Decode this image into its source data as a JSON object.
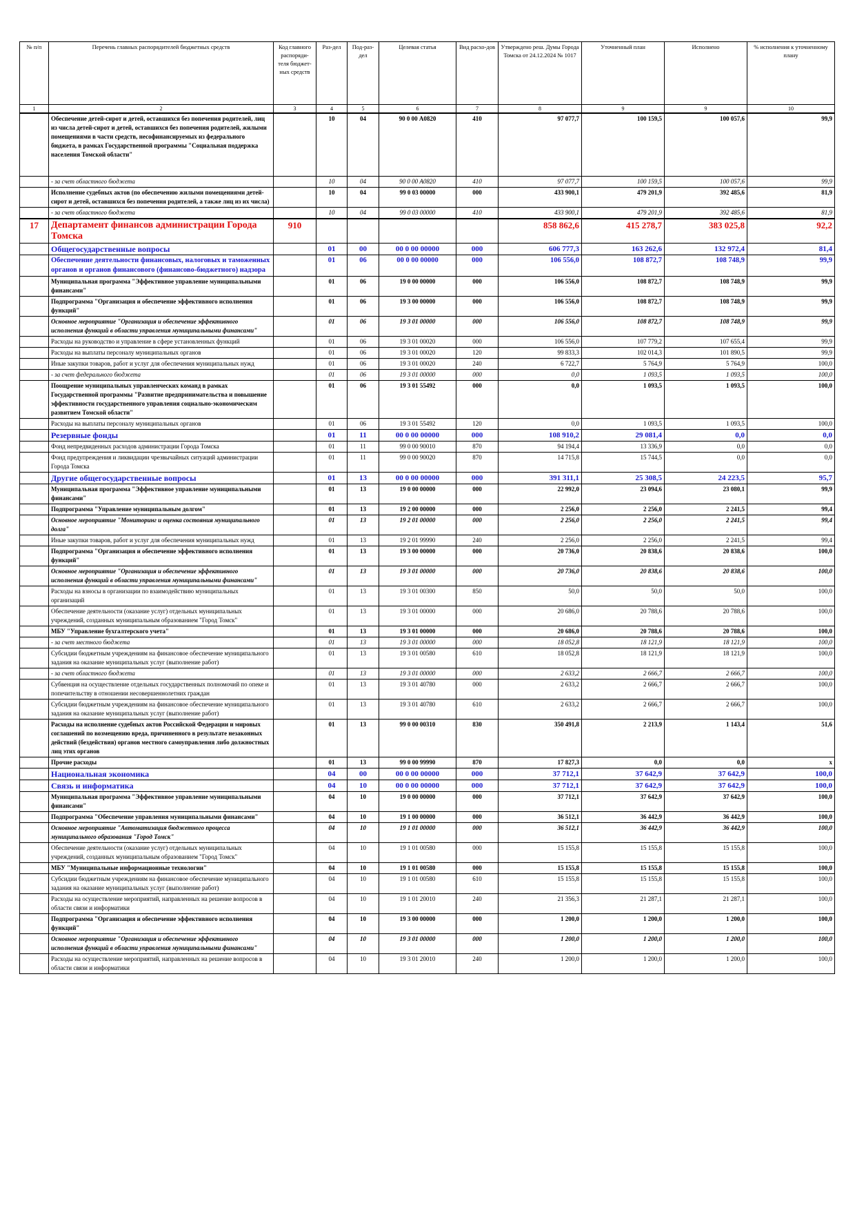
{
  "table": {
    "header": [
      "№ п/п",
      "Перечень главных распорядителей бюджетных средств",
      "Код главного распоряди-теля бюджет-ных средств",
      "Раз-дел",
      "Под-раз-дел",
      "Целевая статья",
      "Вид расхо-дов",
      "Утверждено реш. Думы Города Томска от 24.12.2024 № 1017",
      "Уточненный план",
      "Исполнено",
      "% исполнения к уточненному плану"
    ],
    "numbers": [
      "1",
      "2",
      "3",
      "4",
      "5",
      "6",
      "7",
      "8",
      "9",
      "9",
      "10"
    ],
    "rows": [
      {
        "style": "bold",
        "cells": [
          null,
          "Обеспечение детей-сирот и детей, оставшихся без попечения родителей, лиц из числа детей-сирот и детей, оставшихся без попечения родителей, жилыми помещениями в части средств, несофинансируемых из федерального бюджета, в рамках Государственной программы \"Социальная поддержка населения Томской области\"",
          null,
          "10",
          "04",
          "90 0 00 А0820",
          "410",
          "97 077,7",
          "100 159,5",
          "100 057,6",
          "99,9"
        ]
      },
      {
        "style": "italic",
        "cells": [
          null,
          " - за счет областного бюджета",
          null,
          "10",
          "04",
          "90 0 00 А0820",
          "410",
          "97 077,7",
          "100 159,5",
          "100 057,6",
          "99,9"
        ]
      },
      {
        "style": "bold",
        "cells": [
          null,
          "Исполнение судебных актов (по обеспечению жилыми помещениями детей-сирот и детей, оставшихся без попечения родителей, а также лиц из их числа)",
          null,
          "10",
          "04",
          "99 0 03 00000",
          "000",
          "433 900,1",
          "479 201,9",
          "392 485,6",
          "81,9"
        ]
      },
      {
        "style": "italic",
        "cells": [
          null,
          " - за счет областного бюджета",
          null,
          "10",
          "04",
          "99 0 03 00000",
          "410",
          "433 900,1",
          "479 201,9",
          "392 485,6",
          "81,9"
        ]
      },
      {
        "style": "department",
        "cells": [
          "17",
          "Департамент финансов администрации Города Томска",
          "910",
          null,
          null,
          null,
          null,
          "858 862,6",
          "415 278,7",
          "383 025,8",
          "92,2"
        ]
      },
      {
        "style": "section",
        "cells": [
          null,
          "Общегосударственные вопросы",
          null,
          "01",
          "00",
          "00 0 00 00000",
          "000",
          "606 777,3",
          "163 262,6",
          "132 972,4",
          "81,4"
        ]
      },
      {
        "style": "subsection",
        "cells": [
          null,
          "Обеспечение деятельности финансовых, налоговых и таможенных органов и органов финансового (финансово-бюджетного) надзора",
          null,
          "01",
          "06",
          "00 0 00 00000",
          "000",
          "106 556,0",
          "108 872,7",
          "108 748,9",
          "99,9"
        ]
      },
      {
        "style": "bold",
        "cells": [
          null,
          "Муниципальная программа \"Эффективное управление муниципальными финансами\"",
          null,
          "01",
          "06",
          "19 0 00 00000",
          "000",
          "106 556,0",
          "108 872,7",
          "108 748,9",
          "99,9"
        ]
      },
      {
        "style": "bold",
        "cells": [
          null,
          "Подпрограмма \"Организация и обеспечение эффективного исполнения функций\"",
          null,
          "01",
          "06",
          "19 3 00 00000",
          "000",
          "106 556,0",
          "108 872,7",
          "108 748,9",
          "99,9"
        ]
      },
      {
        "style": "bold-italic",
        "cells": [
          null,
          "Основное мероприятие \"Организация и обеспечение эффективного исполнения функций в области управления муниципальными финансами\"",
          null,
          "01",
          "06",
          "19 3 01 00000",
          "000",
          "106 556,0",
          "108 872,7",
          "108 748,9",
          "99,9"
        ]
      },
      {
        "style": "normal",
        "cells": [
          null,
          "Расходы на руководство и управление в сфере установленных функций",
          null,
          "01",
          "06",
          "19 3 01 00020",
          "000",
          "106 556,0",
          "107 779,2",
          "107 655,4",
          "99,9"
        ]
      },
      {
        "style": "normal",
        "cells": [
          null,
          "Расходы на выплаты персоналу муниципальных органов",
          null,
          "01",
          "06",
          "19 3 01 00020",
          "120",
          "99 833,3",
          "102 014,3",
          "101 890,5",
          "99,9"
        ]
      },
      {
        "style": "normal",
        "cells": [
          null,
          "Иные закупки товаров, работ и услуг для обеспечения муниципальных нужд",
          null,
          "01",
          "06",
          "19 3 01 00020",
          "240",
          "6 722,7",
          "5 764,9",
          "5 764,9",
          "100,0"
        ]
      },
      {
        "style": "italic",
        "cells": [
          null,
          " - за счет федерального бюджета",
          null,
          "01",
          "06",
          "19 3 01 00000",
          "000",
          "0,0",
          "1 093,5",
          "1 093,5",
          "100,0"
        ]
      },
      {
        "style": "bold",
        "cells": [
          null,
          "Поощрение муниципальных управленческих команд в рамках Государственной программы \"Развитие предпринимательства и повышение эффективности государственного управления социально-экономическим развитием Томской области\"",
          null,
          "01",
          "06",
          "19 3 01 55492",
          "000",
          "0,0",
          "1 093,5",
          "1 093,5",
          "100,0"
        ]
      },
      {
        "style": "normal",
        "cells": [
          null,
          "Расходы на выплаты персоналу муниципальных органов",
          null,
          "01",
          "06",
          "19 3 01 55492",
          "120",
          "0,0",
          "1 093,5",
          "1 093,5",
          "100,0"
        ]
      },
      {
        "style": "section",
        "cells": [
          null,
          "Резервные фонды",
          null,
          "01",
          "11",
          "00 0 00 00000",
          "000",
          "108 910,2",
          "29 081,4",
          "0,0",
          "0,0"
        ]
      },
      {
        "style": "normal",
        "cells": [
          null,
          "Фонд непредвиденных расходов администрации Города Томска",
          null,
          "01",
          "11",
          "99 0 00 90010",
          "870",
          "94 194,4",
          "13 336,9",
          "0,0",
          "0,0"
        ]
      },
      {
        "style": "normal",
        "cells": [
          null,
          "Фонд предупреждения и ликвидации чрезвычайных ситуаций администрации Города Томска",
          null,
          "01",
          "11",
          "99 0 00 90020",
          "870",
          "14 715,8",
          "15 744,5",
          "0,0",
          "0,0"
        ]
      },
      {
        "style": "section",
        "cells": [
          null,
          "Другие общегосударственные вопросы",
          null,
          "01",
          "13",
          "00 0 00 00000",
          "000",
          "391 311,1",
          "25 308,5",
          "24 223,5",
          "95,7"
        ]
      },
      {
        "style": "bold",
        "cells": [
          null,
          "Муниципальная программа \"Эффективное управление муниципальными финансами\"",
          null,
          "01",
          "13",
          "19 0 00 00000",
          "000",
          "22 992,0",
          "23 094,6",
          "23 080,1",
          "99,9"
        ]
      },
      {
        "style": "bold",
        "cells": [
          null,
          "Подпрограмма \"Управление муниципальным долгом\"",
          null,
          "01",
          "13",
          "19 2 00 00000",
          "000",
          "2 256,0",
          "2 256,0",
          "2 241,5",
          "99,4"
        ]
      },
      {
        "style": "bold-italic",
        "cells": [
          null,
          "Основное мероприятие \"Мониторинг и оценка состояния муниципального долга\"",
          null,
          "01",
          "13",
          "19 2 01 00000",
          "000",
          "2 256,0",
          "2 256,0",
          "2 241,5",
          "99,4"
        ]
      },
      {
        "style": "normal",
        "cells": [
          null,
          "Иные закупки товаров, работ и услуг для обеспечения муниципальных нужд",
          null,
          "01",
          "13",
          "19 2 01 99990",
          "240",
          "2 256,0",
          "2 256,0",
          "2 241,5",
          "99,4"
        ]
      },
      {
        "style": "bold",
        "cells": [
          null,
          "Подпрограмма \"Организация и обеспечение эффективного исполнения функций\"",
          null,
          "01",
          "13",
          "19 3 00 00000",
          "000",
          "20 736,0",
          "20 838,6",
          "20 838,6",
          "100,0"
        ]
      },
      {
        "style": "bold-italic",
        "cells": [
          null,
          "Основное мероприятие \"Организация и обеспечение эффективного исполнения функций в области управления муниципальными финансами\"",
          null,
          "01",
          "13",
          "19 3 01 00000",
          "000",
          "20 736,0",
          "20 838,6",
          "20 838,6",
          "100,0"
        ]
      },
      {
        "style": "normal",
        "cells": [
          null,
          "Расходы на взносы в организации по взаимодействию муниципальных организаций",
          null,
          "01",
          "13",
          "19 3 01 00300",
          "850",
          "50,0",
          "50,0",
          "50,0",
          "100,0"
        ]
      },
      {
        "style": "normal",
        "cells": [
          null,
          "Обеспечение деятельности (оказание услуг) отдельных муниципальных учреждений, созданных муниципальным образованием \"Город Томск\"",
          null,
          "01",
          "13",
          "19 3 01 00000",
          "000",
          "20 686,0",
          "20 788,6",
          "20 788,6",
          "100,0"
        ]
      },
      {
        "style": "bold",
        "cells": [
          null,
          "МБУ \"Управление бухгалтерского учета\"",
          null,
          "01",
          "13",
          "19 3 01 00000",
          "000",
          "20 686,0",
          "20 788,6",
          "20 788,6",
          "100,0"
        ]
      },
      {
        "style": "italic",
        "cells": [
          null,
          " - за счет местного бюджета",
          null,
          "01",
          "13",
          "19 3 01 00000",
          "000",
          "18 052,8",
          "18 121,9",
          "18 121,9",
          "100,0"
        ]
      },
      {
        "style": "normal",
        "cells": [
          null,
          "Субсидии бюджетным учреждениям на финансовое обеспечение муниципального задания на оказание муниципальных услуг (выполнение работ)",
          null,
          "01",
          "13",
          "19 3 01 00580",
          "610",
          "18 052,8",
          "18 121,9",
          "18 121,9",
          "100,0"
        ]
      },
      {
        "style": "italic",
        "cells": [
          null,
          " - за счет областного бюджета",
          null,
          "01",
          "13",
          "19 3 01 00000",
          "000",
          "2 633,2",
          "2 666,7",
          "2 666,7",
          "100,0"
        ]
      },
      {
        "style": "normal",
        "cells": [
          null,
          "Субвенция на осуществление отдельных государственных полномочий по опеке и попечительству в отношении несовершеннолетних граждан",
          null,
          "01",
          "13",
          "19 3 01 40780",
          "000",
          "2 633,2",
          "2 666,7",
          "2 666,7",
          "100,0"
        ]
      },
      {
        "style": "normal",
        "cells": [
          null,
          "Субсидии бюджетным учреждениям на финансовое обеспечение муниципального задания на оказание муниципальных услуг (выполнение работ)",
          null,
          "01",
          "13",
          "19 3 01 40780",
          "610",
          "2 633,2",
          "2 666,7",
          "2 666,7",
          "100,0"
        ]
      },
      {
        "style": "bold",
        "cells": [
          null,
          "Расходы на исполнение судебных актов Российской Федерации и мировых соглашений по возмещению вреда, причиненного в результате незаконных действий (бездействия) органов местного самоуправления либо должностных лиц этих органов",
          null,
          "01",
          "13",
          "99 0 00 00310",
          "830",
          "350 491,8",
          "2 213,9",
          "1 143,4",
          "51,6"
        ]
      },
      {
        "style": "bold",
        "cells": [
          null,
          "Прочие расходы",
          null,
          "01",
          "13",
          "99 0 00 99990",
          "870",
          "17 827,3",
          "0,0",
          "0,0",
          "х"
        ]
      },
      {
        "style": "section",
        "cells": [
          null,
          "Национальная экономика",
          null,
          "04",
          "00",
          "00 0 00 00000",
          "000",
          "37 712,1",
          "37 642,9",
          "37 642,9",
          "100,0"
        ]
      },
      {
        "style": "section",
        "cells": [
          null,
          "Связь и информатика",
          null,
          "04",
          "10",
          "00 0 00 00000",
          "000",
          "37 712,1",
          "37 642,9",
          "37 642,9",
          "100,0"
        ]
      },
      {
        "style": "bold",
        "cells": [
          null,
          "Муниципальная программа \"Эффективное управление муниципальными финансами\"",
          null,
          "04",
          "10",
          "19 0 00 00000",
          "000",
          "37 712,1",
          "37 642,9",
          "37 642,9",
          "100,0"
        ]
      },
      {
        "style": "bold",
        "cells": [
          null,
          "Подпрограмма \"Обеспечение управления муниципальными финансами\"",
          null,
          "04",
          "10",
          "19 1 00 00000",
          "000",
          "36 512,1",
          "36 442,9",
          "36 442,9",
          "100,0"
        ]
      },
      {
        "style": "bold-italic",
        "cells": [
          null,
          "Основное мероприятие \"Автоматизация бюджетного процесса муниципального образования \"Город Томск\"",
          null,
          "04",
          "10",
          "19 1 01 00000",
          "000",
          "36 512,1",
          "36 442,9",
          "36 442,9",
          "100,0"
        ]
      },
      {
        "style": "normal",
        "cells": [
          null,
          "Обеспечение деятельности (оказание услуг) отдельных муниципальных учреждений, созданных муниципальным образованием \"Город Томск\"",
          null,
          "04",
          "10",
          "19 1 01 00580",
          "000",
          "15 155,8",
          "15 155,8",
          "15 155,8",
          "100,0"
        ]
      },
      {
        "style": "bold",
        "cells": [
          null,
          "МБУ \"Муниципальные информационные технологии\"",
          null,
          "04",
          "10",
          "19 1 01 00580",
          "000",
          "15 155,8",
          "15 155,8",
          "15 155,8",
          "100,0"
        ]
      },
      {
        "style": "normal",
        "cells": [
          null,
          "Субсидии бюджетным учреждениям на финансовое обеспечение муниципального задания на оказание муниципальных услуг (выполнение работ)",
          null,
          "04",
          "10",
          "19 1 01 00580",
          "610",
          "15 155,8",
          "15 155,8",
          "15 155,8",
          "100,0"
        ]
      },
      {
        "style": "normal",
        "cells": [
          null,
          "Расходы на осуществление мероприятий, направленных на решение вопросов в области связи и информатики",
          null,
          "04",
          "10",
          "19 1 01 20010",
          "240",
          "21 356,3",
          "21 287,1",
          "21 287,1",
          "100,0"
        ]
      },
      {
        "style": "bold",
        "cells": [
          null,
          "Подпрограмма \"Организация и обеспечение эффективного исполнения функций\"",
          null,
          "04",
          "10",
          "19 3 00 00000",
          "000",
          "1 200,0",
          "1 200,0",
          "1 200,0",
          "100,0"
        ]
      },
      {
        "style": "bold-italic",
        "cells": [
          null,
          "Основное мероприятие \"Организация и обеспечение эффективного исполнения функций в области управления муниципальными финансами\"",
          null,
          "04",
          "10",
          "19 3 01 00000",
          "000",
          "1 200,0",
          "1 200,0",
          "1 200,0",
          "100,0"
        ]
      },
      {
        "style": "normal",
        "cells": [
          null,
          "Расходы на осуществление мероприятий, направленных на решение вопросов в области связи и информатики",
          null,
          "04",
          "10",
          "19 3 01 20010",
          "240",
          "1 200,0",
          "1 200,0",
          "1 200,0",
          "100,0"
        ]
      }
    ]
  }
}
